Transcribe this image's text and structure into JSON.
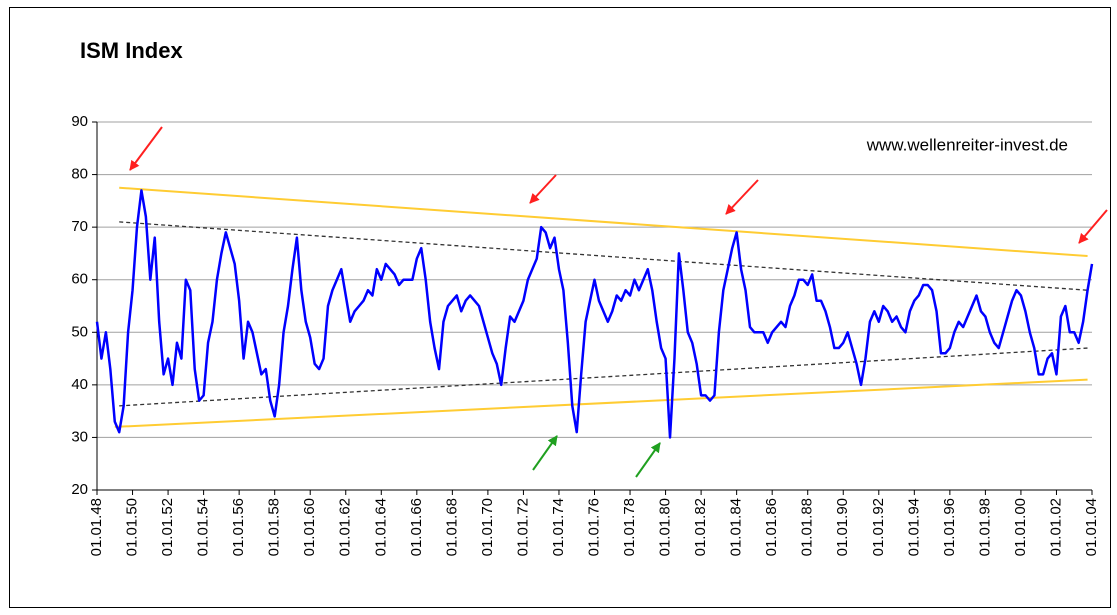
{
  "chart_data": {
    "type": "line",
    "title": "ISM Index",
    "annotation": "www.wellenreiter-invest.de",
    "ylim": [
      20,
      90
    ],
    "yticks": [
      20,
      30,
      40,
      50,
      60,
      70,
      80,
      90
    ],
    "grid": true,
    "categories": [
      "01.01.48",
      null,
      null,
      null,
      null,
      null,
      null,
      null,
      "01.01.50",
      null,
      null,
      null,
      null,
      null,
      null,
      null,
      "01.01.52",
      null,
      null,
      null,
      null,
      null,
      null,
      null,
      "01.01.54",
      null,
      null,
      null,
      null,
      null,
      null,
      null,
      "01.01.56",
      null,
      null,
      null,
      null,
      null,
      null,
      null,
      "01.01.58",
      null,
      null,
      null,
      null,
      null,
      null,
      null,
      "01.01.60",
      null,
      null,
      null,
      null,
      null,
      null,
      null,
      "01.01.62",
      null,
      null,
      null,
      null,
      null,
      null,
      null,
      "01.01.64",
      null,
      null,
      null,
      null,
      null,
      null,
      null,
      "01.01.66",
      null,
      null,
      null,
      null,
      null,
      null,
      null,
      "01.01.68",
      null,
      null,
      null,
      null,
      null,
      null,
      null,
      "01.01.70",
      null,
      null,
      null,
      null,
      null,
      null,
      null,
      "01.01.72",
      null,
      null,
      null,
      null,
      null,
      null,
      null,
      "01.01.74",
      null,
      null,
      null,
      null,
      null,
      null,
      null,
      "01.01.76",
      null,
      null,
      null,
      null,
      null,
      null,
      null,
      "01.01.78",
      null,
      null,
      null,
      null,
      null,
      null,
      null,
      "01.01.80",
      null,
      null,
      null,
      null,
      null,
      null,
      null,
      "01.01.82",
      null,
      null,
      null,
      null,
      null,
      null,
      null,
      "01.01.84",
      null,
      null,
      null,
      null,
      null,
      null,
      null,
      "01.01.86",
      null,
      null,
      null,
      null,
      null,
      null,
      null,
      "01.01.88",
      null,
      null,
      null,
      null,
      null,
      null,
      null,
      "01.01.90",
      null,
      null,
      null,
      null,
      null,
      null,
      null,
      "01.01.92",
      null,
      null,
      null,
      null,
      null,
      null,
      null,
      "01.01.94",
      null,
      null,
      null,
      null,
      null,
      null,
      null,
      "01.01.96",
      null,
      null,
      null,
      null,
      null,
      null,
      null,
      "01.01.98",
      null,
      null,
      null,
      null,
      null,
      null,
      null,
      "01.01.00",
      null,
      null,
      null,
      null,
      null,
      null,
      null,
      "01.01.02",
      null,
      null,
      null,
      null,
      null,
      null,
      null,
      "01.01.04"
    ],
    "series": [
      {
        "color": "#0000ff",
        "values": [
          52,
          45,
          50,
          43,
          33,
          31,
          36,
          50,
          58,
          70,
          77,
          72,
          60,
          68,
          52,
          42,
          45,
          40,
          48,
          45,
          60,
          58,
          43,
          37,
          38,
          48,
          52,
          60,
          65,
          69,
          66,
          63,
          56,
          45,
          52,
          50,
          46,
          42,
          43,
          37,
          34,
          40,
          50,
          55,
          62,
          68,
          58,
          52,
          49,
          44,
          43,
          45,
          55,
          58,
          60,
          62,
          57,
          52,
          54,
          55,
          56,
          58,
          57,
          62,
          60,
          63,
          62,
          61,
          59,
          60,
          60,
          60,
          64,
          66,
          60,
          52,
          47,
          43,
          52,
          55,
          56,
          57,
          54,
          56,
          57,
          56,
          55,
          52,
          49,
          46,
          44,
          40,
          47,
          53,
          52,
          54,
          56,
          60,
          62,
          64,
          70,
          69,
          66,
          68,
          62,
          58,
          48,
          36,
          31,
          42,
          52,
          56,
          60,
          56,
          54,
          52,
          54,
          57,
          56,
          58,
          57,
          60,
          58,
          60,
          62,
          58,
          52,
          47,
          45,
          30,
          45,
          65,
          58,
          50,
          48,
          44,
          38,
          38,
          37,
          38,
          50,
          58,
          62,
          66,
          69,
          62,
          58,
          51,
          50,
          50,
          50,
          48,
          50,
          51,
          52,
          51,
          55,
          57,
          60,
          60,
          59,
          61,
          56,
          56,
          54,
          51,
          47,
          47,
          48,
          50,
          47,
          44,
          40,
          45,
          52,
          54,
          52,
          55,
          54,
          52,
          53,
          51,
          50,
          54,
          56,
          57,
          59,
          59,
          58,
          54,
          46,
          46,
          47,
          50,
          52,
          51,
          53,
          55,
          57,
          54,
          53,
          50,
          48,
          47,
          50,
          53,
          56,
          58,
          57,
          54,
          50,
          47,
          42,
          42,
          45,
          46,
          42,
          53,
          55,
          50,
          50,
          48,
          52,
          58,
          63
        ]
      }
    ],
    "trendlines": [
      {
        "color": "#ffcc33",
        "dashed": false,
        "start": [
          5,
          77.5
        ],
        "end": [
          223,
          64.5
        ]
      },
      {
        "color": "#ffcc33",
        "dashed": false,
        "start": [
          4,
          32
        ],
        "end": [
          223,
          41
        ]
      },
      {
        "color": "#333333",
        "dashed": true,
        "start": [
          5,
          71
        ],
        "end": [
          223,
          58
        ]
      },
      {
        "color": "#333333",
        "dashed": true,
        "start": [
          5,
          36
        ],
        "end": [
          223,
          47
        ]
      }
    ]
  }
}
